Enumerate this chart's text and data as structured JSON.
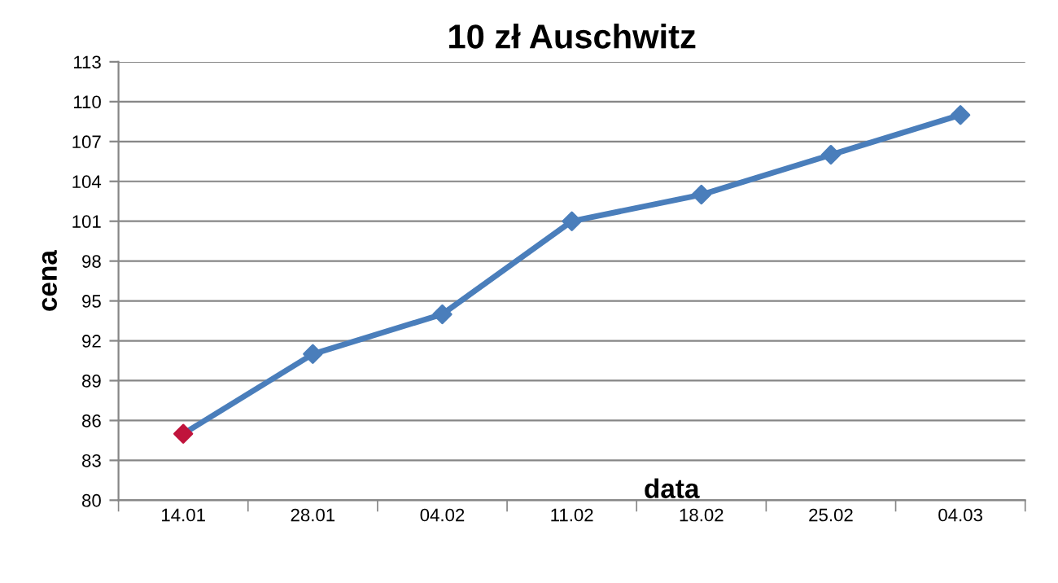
{
  "chart_data": {
    "type": "line",
    "title": "10 zł Auschwitz",
    "xlabel": "data",
    "ylabel": "cena",
    "categories": [
      "14.01",
      "28.01",
      "04.02",
      "11.02",
      "18.02",
      "25.02",
      "04.03"
    ],
    "series": [
      {
        "color": "#4a7ebb",
        "colors": [
          "#c0143c",
          "#4a7ebb",
          "#4a7ebb",
          "#4a7ebb",
          "#4a7ebb",
          "#4a7ebb",
          "#4a7ebb"
        ],
        "values": [
          85,
          91,
          94,
          101,
          103,
          106,
          109
        ]
      }
    ],
    "ylim": [
      80,
      113
    ],
    "yticks": [
      80,
      83,
      86,
      89,
      92,
      95,
      98,
      101,
      104,
      107,
      110,
      113
    ],
    "grid": "y",
    "legend": false,
    "marker": "diamond",
    "line_style": "solid"
  }
}
